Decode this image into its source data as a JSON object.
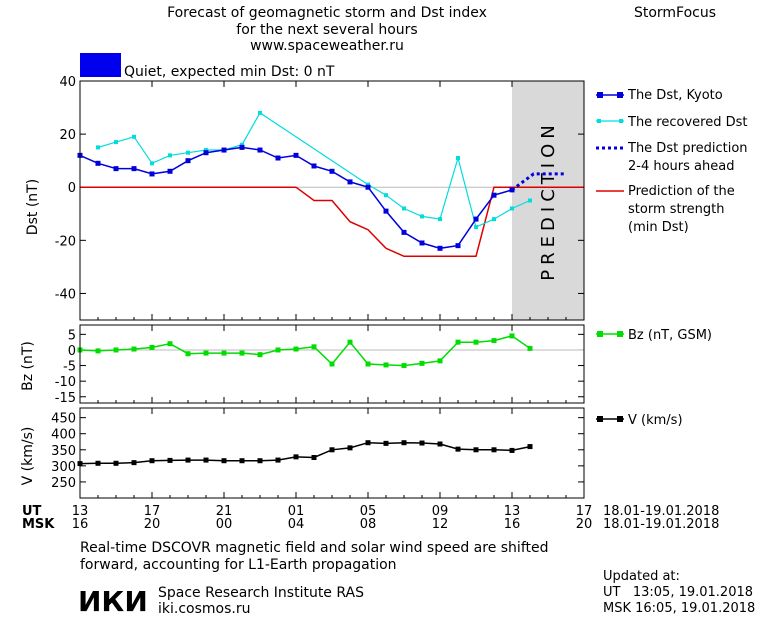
{
  "header": {
    "title_line1": "Forecast of geomagnetic storm and Dst index",
    "title_line2": "for the next several hours",
    "url": "www.spaceweather.ru",
    "brand": "StormFocus"
  },
  "status": {
    "text": "Quiet, expected min Dst: 0 nT",
    "color": "#0000ee"
  },
  "prediction_label": "PREDICTION",
  "time_axis": {
    "ut_label": "UT",
    "msk_label": "MSK",
    "ut_ticks": [
      "13",
      "17",
      "21",
      "01",
      "05",
      "09",
      "13",
      "17"
    ],
    "msk_ticks": [
      "16",
      "20",
      "00",
      "04",
      "08",
      "12",
      "16",
      "20"
    ],
    "ut_range": "18.01-19.01.2018",
    "msk_range": "18.01-19.01.2018"
  },
  "footer": {
    "note_line1": "Real-time DSCOVR magnetic field and solar wind speed are shifted",
    "note_line2": "forward, accounting for L1-Earth propagation",
    "logo_text": "ИКИ",
    "institute": "Space Research Institute RAS",
    "site": "iki.cosmos.ru",
    "updated_label": "Updated at:",
    "updated_ut": "UT   13:05, 19.01.2018",
    "updated_msk": "MSK 16:05, 19.01.2018"
  },
  "chart_data": [
    {
      "type": "line",
      "x_unit": "hours since 13 UT, 18.01.2018",
      "ylabel": "Dst (nT)",
      "ylim": [
        -50,
        40
      ],
      "y_ticks": [
        40,
        20,
        0,
        -20,
        -40
      ],
      "xlim": [
        0,
        28
      ],
      "prediction_region": [
        24,
        28
      ],
      "series": [
        {
          "name": "The Dst, Kyoto",
          "color": "#0000dd",
          "x": [
            0,
            1,
            2,
            3,
            4,
            5,
            6,
            7,
            8,
            9,
            10,
            11,
            12,
            13,
            14,
            15,
            16,
            17,
            18,
            19,
            20,
            21,
            22,
            23,
            24
          ],
          "y": [
            12,
            9,
            7,
            7,
            5,
            6,
            10,
            13,
            14,
            15,
            14,
            11,
            12,
            8,
            6,
            2,
            0,
            -9,
            -17,
            -21,
            -23,
            -22,
            -12,
            -3,
            -1
          ]
        },
        {
          "name": "The recovered Dst",
          "color": "#00dddd",
          "x": [
            1,
            2,
            3,
            4,
            5,
            6,
            7,
            8,
            9,
            10,
            16,
            17,
            18,
            19,
            20,
            21,
            22,
            23,
            24,
            25
          ],
          "y": [
            15,
            17,
            19,
            9,
            12,
            13,
            14,
            14,
            16,
            28,
            1,
            -3,
            -8,
            -11,
            -12,
            11,
            -15,
            -12,
            -8,
            -5
          ]
        },
        {
          "name": "The Dst prediction 2-4 hours ahead",
          "color": "#0000dd",
          "x": [
            24,
            24.6,
            25.2,
            27
          ],
          "y": [
            -1,
            2,
            5,
            5
          ]
        },
        {
          "name": "Prediction of the storm strength (min Dst)",
          "color": "#dd0000",
          "x": [
            0,
            12,
            13,
            14,
            15,
            16,
            17,
            18,
            21,
            22,
            23,
            28
          ],
          "y": [
            0,
            0,
            -5,
            -5,
            -13,
            -16,
            -23,
            -26,
            -26,
            -26,
            0,
            0
          ]
        }
      ]
    },
    {
      "type": "line",
      "ylabel": "Bz (nT)",
      "ylim": [
        -17,
        8
      ],
      "y_ticks": [
        5,
        0,
        -5,
        -10,
        -15
      ],
      "xlim": [
        0,
        28
      ],
      "series": [
        {
          "name": "Bz (nT, GSM)",
          "color": "#00dd00",
          "x": [
            0,
            1,
            2,
            3,
            4,
            5,
            6,
            7,
            8,
            9,
            10,
            11,
            12,
            13,
            14,
            15,
            16,
            17,
            18,
            19,
            20,
            21,
            22,
            23,
            24,
            25
          ],
          "y": [
            0,
            -0.3,
            0,
            0.3,
            0.8,
            2,
            -1.2,
            -1,
            -1,
            -1,
            -1.5,
            0,
            0.3,
            1,
            -4.5,
            2.5,
            -4.5,
            -4.8,
            -5,
            -4.3,
            -3.5,
            2.5,
            2.5,
            3,
            4.5,
            0.5
          ]
        }
      ]
    },
    {
      "type": "line",
      "ylabel": "V (km/s)",
      "ylim": [
        200,
        480
      ],
      "y_ticks": [
        450,
        400,
        350,
        300,
        250
      ],
      "xlim": [
        0,
        28
      ],
      "series": [
        {
          "name": "V (km/s)",
          "color": "#000000",
          "x": [
            0,
            1,
            2,
            3,
            4,
            5,
            6,
            7,
            8,
            9,
            10,
            11,
            12,
            13,
            14,
            15,
            16,
            17,
            18,
            19,
            20,
            21,
            22,
            23,
            24,
            25
          ],
          "y": [
            307,
            308,
            308,
            310,
            316,
            317,
            318,
            318,
            316,
            316,
            316,
            318,
            328,
            326,
            350,
            356,
            372,
            370,
            372,
            371,
            368,
            352,
            350,
            350,
            348,
            360
          ]
        }
      ]
    }
  ]
}
